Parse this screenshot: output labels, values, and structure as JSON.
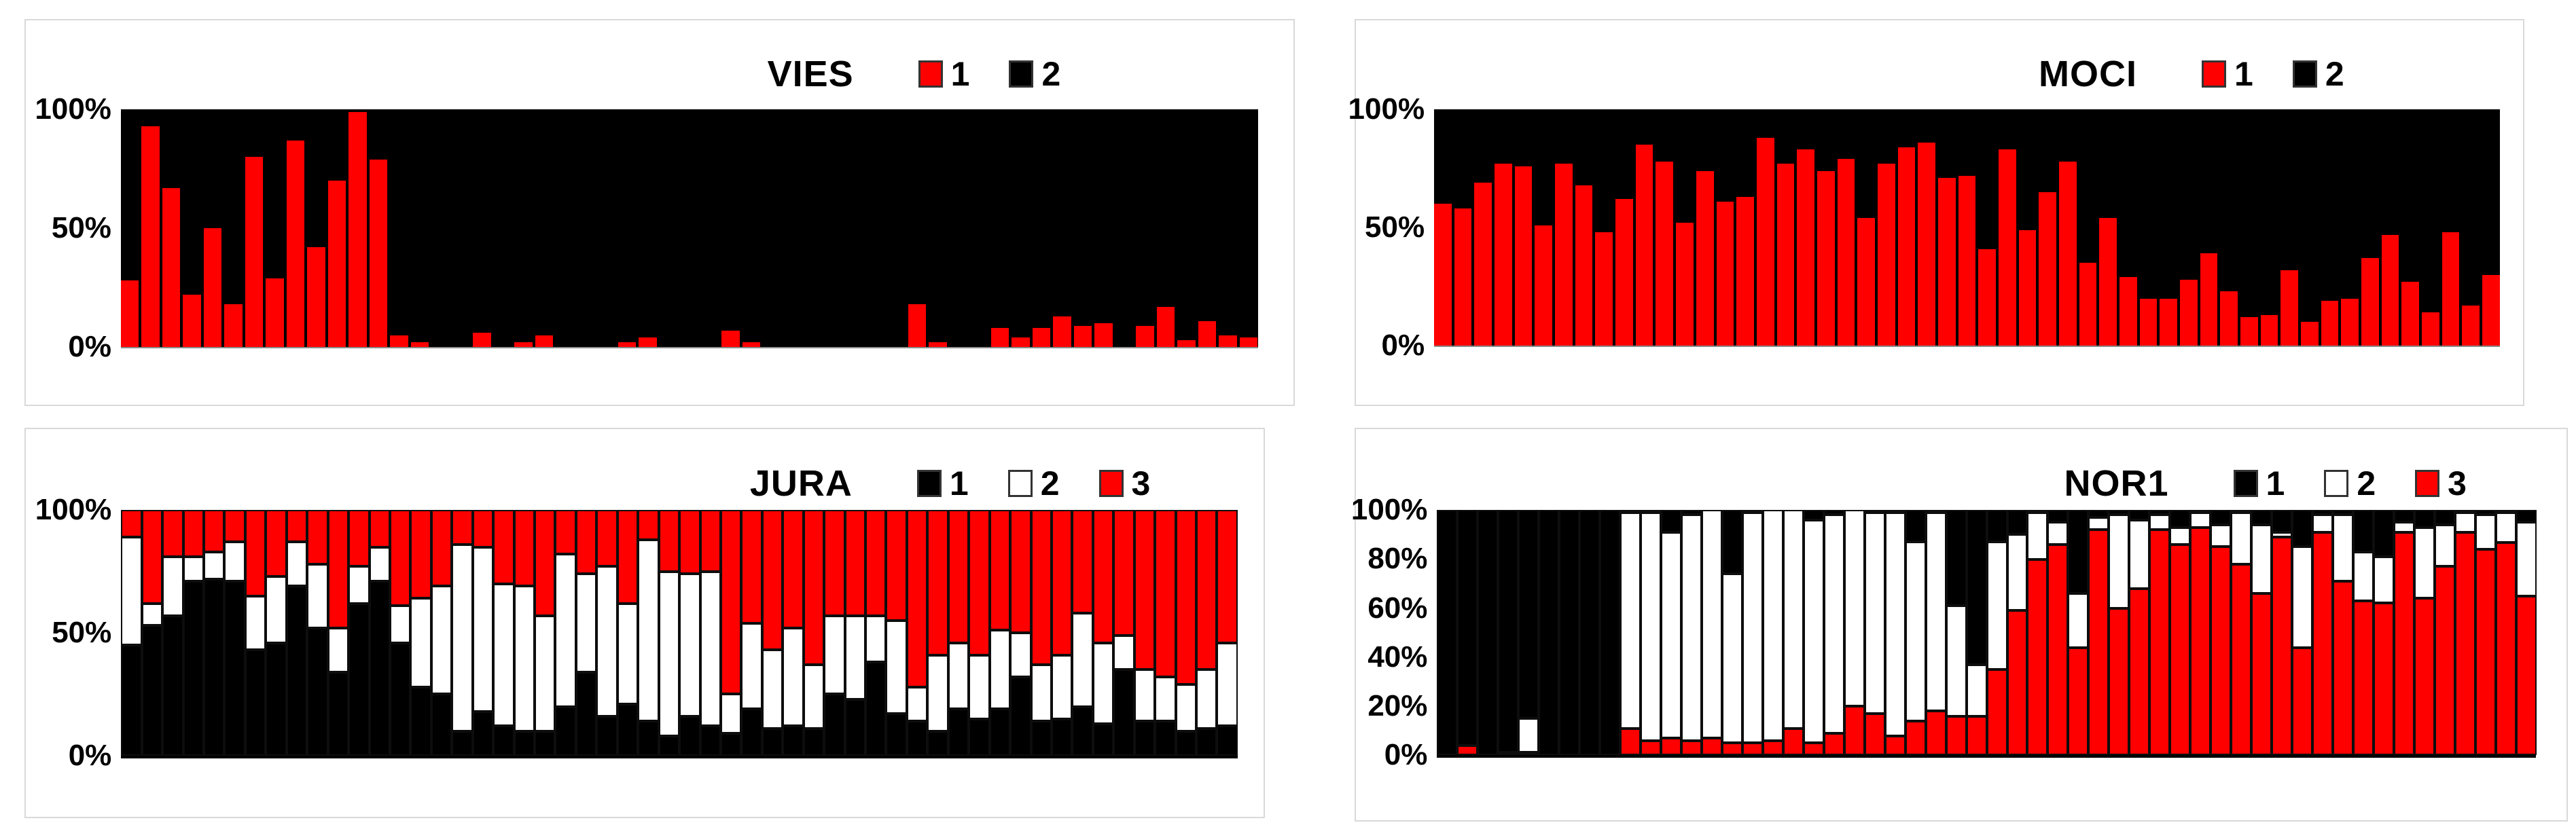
{
  "colors": {
    "red": "#FF0000",
    "black": "#000000",
    "white": "#FFFFFF",
    "panel_border": "#D9D9D9",
    "background": "#FFFFFF"
  },
  "chart_data": [
    {
      "id": "vies",
      "type": "bar",
      "subtype": "stacked-100pct-2series",
      "title": "VIES",
      "xlabel": "",
      "ylabel": "",
      "ylim": [
        0,
        100
      ],
      "grid": false,
      "legend_position": "top-right-of-title",
      "y_axis": {
        "labels": [
          "100%",
          "50%",
          "0%"
        ],
        "values": [
          100,
          50,
          0
        ]
      },
      "legend": [
        {
          "label": "1",
          "color": "#FF0000"
        },
        {
          "label": "2",
          "color": "#000000"
        }
      ],
      "series": [
        {
          "name": "1",
          "color": "#FF0000",
          "values": [
            28,
            93,
            67,
            22,
            50,
            18,
            80,
            29,
            87,
            42,
            70,
            99,
            79,
            5,
            2,
            0,
            0,
            6,
            0,
            2,
            5,
            0,
            0,
            0,
            2,
            4,
            0,
            0,
            0,
            7,
            2,
            0,
            0,
            0,
            0,
            0,
            0,
            0,
            18,
            2,
            0,
            0,
            8,
            4,
            8,
            13,
            9,
            10,
            0,
            9,
            17,
            3,
            11,
            5,
            4
          ]
        },
        {
          "name": "2",
          "color": "#000000",
          "note": "complement, fills each bar to 100%"
        }
      ]
    },
    {
      "id": "moci",
      "type": "bar",
      "subtype": "stacked-100pct-2series",
      "title": "MOCI",
      "xlabel": "",
      "ylabel": "",
      "ylim": [
        0,
        100
      ],
      "grid": false,
      "legend_position": "top-right-of-title",
      "y_axis": {
        "labels": [
          "100%",
          "50%",
          "0%"
        ],
        "values": [
          100,
          50,
          0
        ]
      },
      "legend": [
        {
          "label": "1",
          "color": "#FF0000"
        },
        {
          "label": "2",
          "color": "#000000"
        }
      ],
      "series": [
        {
          "name": "1",
          "color": "#FF0000",
          "values": [
            60,
            58,
            69,
            77,
            76,
            51,
            77,
            68,
            48,
            62,
            85,
            78,
            52,
            74,
            61,
            63,
            88,
            77,
            83,
            74,
            79,
            54,
            77,
            84,
            86,
            71,
            72,
            41,
            83,
            49,
            65,
            78,
            35,
            54,
            29,
            20,
            20,
            28,
            39,
            23,
            12,
            13,
            32,
            10,
            19,
            20,
            37,
            47,
            27,
            14,
            48,
            17,
            30
          ]
        },
        {
          "name": "2",
          "color": "#000000",
          "note": "complement, fills each bar to 100%"
        }
      ]
    },
    {
      "id": "jura",
      "type": "bar",
      "subtype": "stacked-100pct-3series",
      "title": "JURA",
      "xlabel": "",
      "ylabel": "",
      "ylim": [
        0,
        100
      ],
      "grid": false,
      "legend_position": "top-right-of-title",
      "y_axis": {
        "labels": [
          "100%",
          "50%",
          "0%"
        ],
        "values": [
          100,
          50,
          0
        ]
      },
      "legend": [
        {
          "label": "1",
          "color": "#000000"
        },
        {
          "label": "2",
          "color": "#FFFFFF"
        },
        {
          "label": "3",
          "color": "#FF0000"
        }
      ],
      "stack_bottom_to_top": [
        "1",
        "2",
        "3"
      ],
      "stack_colors_bottom_to_top": [
        "#000000",
        "#FFFFFF",
        "#FF0000"
      ],
      "bars": [
        [
          45,
          44,
          11
        ],
        [
          53,
          9,
          38
        ],
        [
          57,
          24,
          19
        ],
        [
          71,
          10,
          19
        ],
        [
          72,
          11,
          17
        ],
        [
          71,
          16,
          13
        ],
        [
          43,
          22,
          35
        ],
        [
          46,
          27,
          27
        ],
        [
          69,
          18,
          13
        ],
        [
          52,
          26,
          22
        ],
        [
          34,
          18,
          48
        ],
        [
          62,
          15,
          23
        ],
        [
          71,
          14,
          15
        ],
        [
          46,
          15,
          39
        ],
        [
          28,
          36,
          36
        ],
        [
          25,
          44,
          31
        ],
        [
          10,
          76,
          14
        ],
        [
          18,
          67,
          15
        ],
        [
          12,
          58,
          30
        ],
        [
          10,
          59,
          31
        ],
        [
          10,
          47,
          43
        ],
        [
          20,
          62,
          18
        ],
        [
          34,
          40,
          26
        ],
        [
          16,
          61,
          23
        ],
        [
          21,
          41,
          38
        ],
        [
          14,
          74,
          12
        ],
        [
          8,
          67,
          25
        ],
        [
          16,
          58,
          26
        ],
        [
          12,
          63,
          25
        ],
        [
          9,
          16,
          75
        ],
        [
          19,
          35,
          46
        ],
        [
          11,
          32,
          57
        ],
        [
          12,
          40,
          48
        ],
        [
          11,
          26,
          63
        ],
        [
          25,
          32,
          43
        ],
        [
          23,
          34,
          43
        ],
        [
          38,
          19,
          43
        ],
        [
          17,
          38,
          45
        ],
        [
          14,
          14,
          72
        ],
        [
          10,
          31,
          59
        ],
        [
          19,
          27,
          54
        ],
        [
          15,
          26,
          59
        ],
        [
          19,
          32,
          49
        ],
        [
          32,
          18,
          50
        ],
        [
          14,
          23,
          63
        ],
        [
          15,
          26,
          59
        ],
        [
          20,
          38,
          42
        ],
        [
          13,
          33,
          54
        ],
        [
          35,
          14,
          51
        ],
        [
          14,
          21,
          65
        ],
        [
          14,
          18,
          68
        ],
        [
          10,
          19,
          71
        ],
        [
          11,
          24,
          65
        ],
        [
          12,
          34,
          54
        ]
      ]
    },
    {
      "id": "nor1",
      "type": "bar",
      "subtype": "stacked-100pct-3series",
      "title": "NOR1",
      "xlabel": "",
      "ylabel": "",
      "ylim": [
        0,
        100
      ],
      "grid": false,
      "legend_position": "top-right-of-title",
      "y_axis": {
        "labels": [
          "100%",
          "80%",
          "60%",
          "40%",
          "20%",
          "0%"
        ],
        "values": [
          100,
          80,
          60,
          40,
          20,
          0
        ]
      },
      "legend": [
        {
          "label": "1",
          "color": "#000000"
        },
        {
          "label": "2",
          "color": "#FFFFFF"
        },
        {
          "label": "3",
          "color": "#FF0000"
        }
      ],
      "stack_bottom_to_top": [
        "3",
        "2",
        "1"
      ],
      "stack_colors_bottom_to_top": [
        "#FF0000",
        "#FFFFFF",
        "#000000"
      ],
      "bars": [
        [
          0,
          0,
          100
        ],
        [
          4,
          0,
          96
        ],
        [
          0,
          0,
          100
        ],
        [
          1,
          0,
          99
        ],
        [
          1,
          14,
          85
        ],
        [
          0,
          0,
          100
        ],
        [
          0,
          0,
          100
        ],
        [
          0,
          0,
          100
        ],
        [
          0,
          0,
          100
        ],
        [
          11,
          88,
          1
        ],
        [
          6,
          93,
          1
        ],
        [
          7,
          84,
          9
        ],
        [
          6,
          92,
          2
        ],
        [
          7,
          93,
          0
        ],
        [
          5,
          69,
          26
        ],
        [
          5,
          94,
          1
        ],
        [
          6,
          94,
          0
        ],
        [
          11,
          89,
          0
        ],
        [
          5,
          91,
          4
        ],
        [
          9,
          89,
          2
        ],
        [
          20,
          80,
          0
        ],
        [
          17,
          82,
          1
        ],
        [
          8,
          91,
          1
        ],
        [
          14,
          73,
          13
        ],
        [
          18,
          81,
          1
        ],
        [
          16,
          45,
          39
        ],
        [
          16,
          21,
          63
        ],
        [
          35,
          52,
          13
        ],
        [
          59,
          31,
          10
        ],
        [
          80,
          19,
          1
        ],
        [
          86,
          9,
          5
        ],
        [
          44,
          22,
          34
        ],
        [
          92,
          5,
          3
        ],
        [
          60,
          38,
          2
        ],
        [
          68,
          28,
          4
        ],
        [
          92,
          6,
          2
        ],
        [
          86,
          7,
          7
        ],
        [
          93,
          6,
          1
        ],
        [
          85,
          9,
          6
        ],
        [
          78,
          21,
          1
        ],
        [
          66,
          28,
          6
        ],
        [
          89,
          2,
          9
        ],
        [
          44,
          41,
          15
        ],
        [
          91,
          7,
          2
        ],
        [
          71,
          27,
          2
        ],
        [
          63,
          20,
          17
        ],
        [
          62,
          19,
          19
        ],
        [
          91,
          4,
          5
        ],
        [
          64,
          29,
          7
        ],
        [
          77,
          17,
          6
        ],
        [
          91,
          8,
          1
        ],
        [
          84,
          14,
          2
        ],
        [
          87,
          12,
          1
        ],
        [
          65,
          30,
          5
        ]
      ]
    }
  ]
}
